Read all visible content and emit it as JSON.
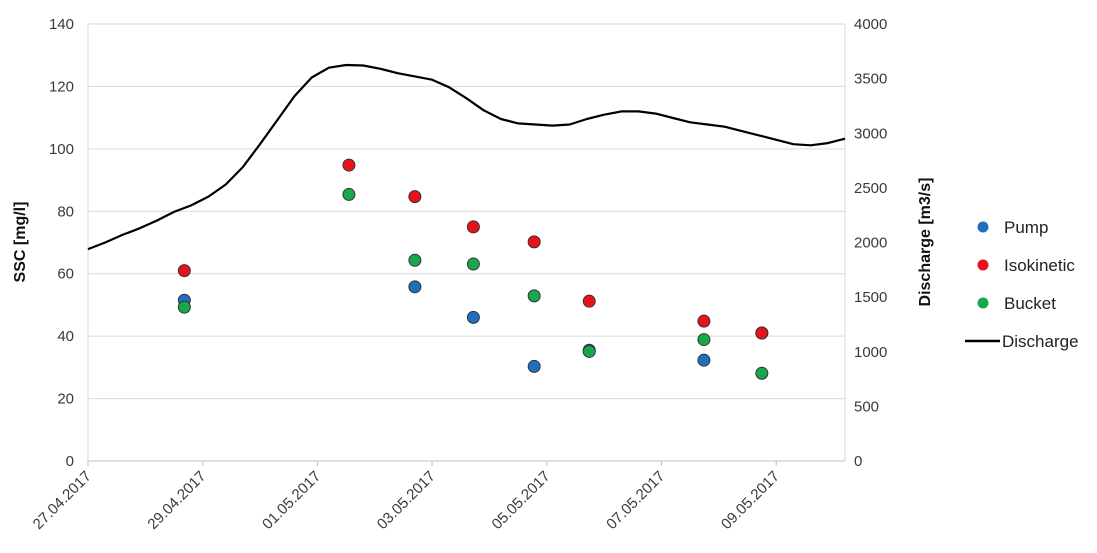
{
  "chart_data": {
    "type": "scatter",
    "y_left": {
      "label": "SSC [mg/l]",
      "range": [
        0,
        140
      ],
      "ticks": [
        0,
        20,
        40,
        60,
        80,
        100,
        120,
        140
      ]
    },
    "y_right": {
      "label": "Discharge [m3/s]",
      "range": [
        0,
        4000
      ],
      "ticks": [
        0,
        500,
        1000,
        1500,
        2000,
        2500,
        3000,
        3500,
        4000
      ]
    },
    "x": {
      "range_days": [
        0,
        13.2
      ],
      "tick_labels": [
        "27.04.2017",
        "29.04.2017",
        "01.05.2017",
        "03.05.2017",
        "05.05.2017",
        "07.05.2017",
        "09.05.2017"
      ],
      "tick_days": [
        0,
        2,
        4,
        6,
        8,
        10,
        12
      ]
    },
    "grid": "horizontal",
    "legend_position": "right",
    "colors": {
      "Pump": "#1f6fc1",
      "Isokinetic": "#e8121a",
      "Bucket": "#16a84a",
      "Discharge": "#000000"
    },
    "series": [
      {
        "name": "Pump",
        "axis": "left",
        "points": [
          [
            1.68,
            51.5
          ],
          [
            5.7,
            55.8
          ],
          [
            6.72,
            46
          ],
          [
            7.78,
            30.3
          ],
          [
            8.74,
            35.5
          ],
          [
            10.74,
            32.3
          ],
          [
            11.75,
            41
          ]
        ]
      },
      {
        "name": "Isokinetic",
        "axis": "left",
        "points": [
          [
            1.68,
            61
          ],
          [
            4.55,
            94.8
          ],
          [
            5.7,
            84.7
          ],
          [
            6.72,
            75
          ],
          [
            7.78,
            70.2
          ],
          [
            8.74,
            51.2
          ],
          [
            10.74,
            44.8
          ],
          [
            11.75,
            41
          ]
        ]
      },
      {
        "name": "Bucket",
        "axis": "left",
        "points": [
          [
            1.68,
            49.3
          ],
          [
            4.55,
            85.4
          ],
          [
            5.7,
            64.3
          ],
          [
            6.72,
            63.1
          ],
          [
            7.78,
            52.9
          ],
          [
            8.74,
            35.1
          ],
          [
            10.74,
            38.9
          ],
          [
            11.75,
            28.1
          ]
        ]
      },
      {
        "name": "Discharge",
        "axis": "right",
        "style": "line",
        "points": [
          [
            0,
            1940
          ],
          [
            0.3,
            2000
          ],
          [
            0.6,
            2070
          ],
          [
            0.9,
            2130
          ],
          [
            1.2,
            2200
          ],
          [
            1.5,
            2280
          ],
          [
            1.8,
            2340
          ],
          [
            2.1,
            2420
          ],
          [
            2.4,
            2530
          ],
          [
            2.7,
            2690
          ],
          [
            3.0,
            2900
          ],
          [
            3.3,
            3120
          ],
          [
            3.6,
            3340
          ],
          [
            3.9,
            3510
          ],
          [
            4.2,
            3600
          ],
          [
            4.5,
            3625
          ],
          [
            4.8,
            3620
          ],
          [
            5.1,
            3590
          ],
          [
            5.4,
            3550
          ],
          [
            5.7,
            3520
          ],
          [
            6.0,
            3490
          ],
          [
            6.3,
            3420
          ],
          [
            6.6,
            3320
          ],
          [
            6.9,
            3210
          ],
          [
            7.2,
            3130
          ],
          [
            7.5,
            3090
          ],
          [
            7.8,
            3080
          ],
          [
            8.1,
            3070
          ],
          [
            8.4,
            3080
          ],
          [
            8.7,
            3130
          ],
          [
            9.0,
            3170
          ],
          [
            9.3,
            3200
          ],
          [
            9.6,
            3200
          ],
          [
            9.9,
            3180
          ],
          [
            10.2,
            3140
          ],
          [
            10.5,
            3100
          ],
          [
            10.8,
            3080
          ],
          [
            11.1,
            3060
          ],
          [
            11.4,
            3020
          ],
          [
            11.7,
            2980
          ],
          [
            12.0,
            2940
          ],
          [
            12.3,
            2900
          ],
          [
            12.6,
            2890
          ],
          [
            12.9,
            2910
          ],
          [
            13.2,
            2950
          ]
        ]
      }
    ]
  }
}
